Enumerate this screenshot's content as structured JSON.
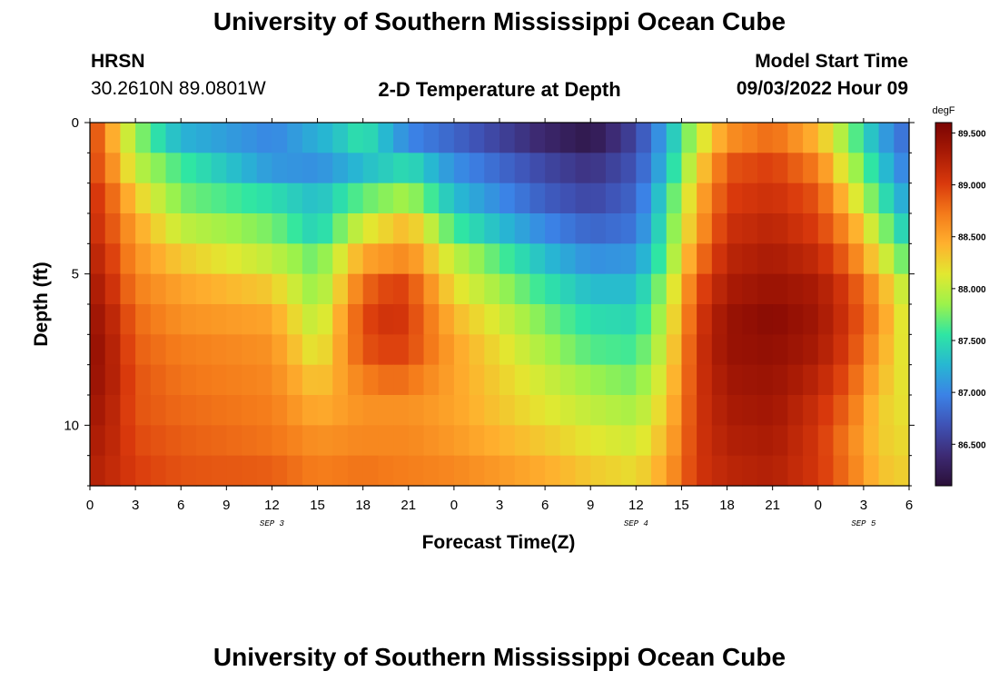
{
  "header": {
    "title": "University of Southern Mississippi Ocean Cube",
    "station": "HRSN",
    "coords": "30.2610N  89.0801W",
    "subtitle": "2-D Temperature at Depth",
    "model_start_label": "Model Start Time",
    "model_start_value": "09/03/2022 Hour 09"
  },
  "footer": {
    "title_repeat": "University of Southern Mississippi Ocean Cube"
  },
  "chart_data": {
    "type": "heatmap",
    "title": "2-D Temperature at Depth",
    "xlabel": "Forecast Time(Z)",
    "ylabel": "Depth (ft)",
    "x_hours_from_start": [
      0,
      3,
      6,
      9,
      12,
      15,
      18,
      21,
      24,
      27,
      30,
      33,
      36,
      39,
      42,
      45,
      48,
      51,
      54
    ],
    "x_tick_labels": [
      "0",
      "3",
      "6",
      "9",
      "12",
      "15",
      "18",
      "21",
      "0",
      "3",
      "6",
      "9",
      "12",
      "15",
      "18",
      "21",
      "0",
      "3",
      "6"
    ],
    "date_labels": [
      {
        "label": "SEP 3",
        "at_hour": 12
      },
      {
        "label": "SEP 4",
        "at_hour": 36
      },
      {
        "label": "SEP 5",
        "at_hour": 51
      }
    ],
    "y_ticks": [
      0,
      5,
      10
    ],
    "y_tick_labels": [
      "0",
      "5",
      "10"
    ],
    "xlim": [
      0,
      54
    ],
    "ylim": [
      0,
      12
    ],
    "colorbar": {
      "unit": "degF",
      "min": 86.1,
      "max": 89.6,
      "tick_values": [
        86.5,
        87.0,
        87.5,
        88.0,
        88.5,
        89.0,
        89.5
      ],
      "tick_labels": [
        "86.500",
        "87.000",
        "87.500",
        "88.000",
        "88.500",
        "89.000",
        "89.500"
      ]
    },
    "depth_profiles": [
      {
        "depth_ft": 0.5,
        "t": [
          [
            0,
            89.0
          ],
          [
            1,
            88.7
          ],
          [
            2,
            88.2
          ],
          [
            4,
            87.6
          ],
          [
            6,
            87.25
          ],
          [
            12,
            87.0
          ],
          [
            16,
            87.3
          ],
          [
            18,
            87.55
          ],
          [
            21,
            87.0
          ],
          [
            24,
            86.8
          ],
          [
            30,
            86.35
          ],
          [
            33,
            86.2
          ],
          [
            36,
            86.6
          ],
          [
            38,
            87.2
          ],
          [
            40,
            88.0
          ],
          [
            42,
            88.6
          ],
          [
            45,
            88.8
          ],
          [
            48,
            88.4
          ],
          [
            50,
            87.8
          ],
          [
            52,
            87.2
          ],
          [
            54,
            86.8
          ]
        ]
      },
      {
        "depth_ft": 1.5,
        "t": [
          [
            0,
            89.0
          ],
          [
            1,
            88.8
          ],
          [
            3,
            88.0
          ],
          [
            6,
            87.6
          ],
          [
            12,
            87.1
          ],
          [
            15,
            87.05
          ],
          [
            18,
            87.3
          ],
          [
            21,
            87.5
          ],
          [
            24,
            87.05
          ],
          [
            30,
            86.6
          ],
          [
            33,
            86.45
          ],
          [
            36,
            86.7
          ],
          [
            38,
            87.3
          ],
          [
            40,
            88.2
          ],
          [
            42,
            88.9
          ],
          [
            45,
            89.0
          ],
          [
            48,
            88.7
          ],
          [
            50,
            88.0
          ],
          [
            52,
            87.4
          ],
          [
            54,
            86.9
          ]
        ]
      },
      {
        "depth_ft": 2.5,
        "t": [
          [
            0,
            89.1
          ],
          [
            1,
            88.95
          ],
          [
            3,
            88.3
          ],
          [
            6,
            87.75
          ],
          [
            12,
            87.5
          ],
          [
            15,
            87.3
          ],
          [
            18,
            87.7
          ],
          [
            21,
            87.9
          ],
          [
            24,
            87.3
          ],
          [
            30,
            86.75
          ],
          [
            33,
            86.6
          ],
          [
            36,
            86.8
          ],
          [
            38,
            87.5
          ],
          [
            40,
            88.4
          ],
          [
            42,
            89.0
          ],
          [
            45,
            89.1
          ],
          [
            48,
            88.9
          ],
          [
            50,
            88.3
          ],
          [
            52,
            87.6
          ],
          [
            54,
            87.1
          ]
        ]
      },
      {
        "depth_ft": 3.5,
        "t": [
          [
            0,
            89.15
          ],
          [
            1,
            89.0
          ],
          [
            3,
            88.5
          ],
          [
            6,
            88.0
          ],
          [
            12,
            87.75
          ],
          [
            15,
            87.4
          ],
          [
            18,
            88.1
          ],
          [
            21,
            88.4
          ],
          [
            24,
            87.6
          ],
          [
            30,
            87.0
          ],
          [
            33,
            86.8
          ],
          [
            36,
            86.9
          ],
          [
            38,
            87.6
          ],
          [
            40,
            88.5
          ],
          [
            42,
            89.1
          ],
          [
            45,
            89.2
          ],
          [
            48,
            89.0
          ],
          [
            50,
            88.6
          ],
          [
            52,
            87.9
          ],
          [
            54,
            87.3
          ]
        ]
      },
      {
        "depth_ft": 4.5,
        "t": [
          [
            0,
            89.25
          ],
          [
            1,
            89.1
          ],
          [
            3,
            88.6
          ],
          [
            6,
            88.3
          ],
          [
            12,
            88.0
          ],
          [
            15,
            87.7
          ],
          [
            18,
            88.5
          ],
          [
            21,
            88.65
          ],
          [
            24,
            88.0
          ],
          [
            30,
            87.3
          ],
          [
            33,
            87.05
          ],
          [
            36,
            87.1
          ],
          [
            38,
            87.7
          ],
          [
            40,
            88.7
          ],
          [
            42,
            89.2
          ],
          [
            45,
            89.3
          ],
          [
            48,
            89.15
          ],
          [
            50,
            88.8
          ],
          [
            52,
            88.2
          ],
          [
            54,
            87.6
          ]
        ]
      },
      {
        "depth_ft": 5.5,
        "t": [
          [
            0,
            89.35
          ],
          [
            1,
            89.2
          ],
          [
            3,
            88.7
          ],
          [
            6,
            88.5
          ],
          [
            12,
            88.3
          ],
          [
            15,
            87.8
          ],
          [
            18,
            88.8
          ],
          [
            20,
            89.0
          ],
          [
            21,
            88.95
          ],
          [
            24,
            88.2
          ],
          [
            30,
            87.55
          ],
          [
            33,
            87.3
          ],
          [
            36,
            87.3
          ],
          [
            38,
            87.9
          ],
          [
            40,
            88.9
          ],
          [
            42,
            89.3
          ],
          [
            45,
            89.4
          ],
          [
            48,
            89.3
          ],
          [
            50,
            89.0
          ],
          [
            52,
            88.5
          ],
          [
            54,
            87.9
          ]
        ]
      },
      {
        "depth_ft": 6.5,
        "t": [
          [
            0,
            89.4
          ],
          [
            1,
            89.3
          ],
          [
            3,
            88.8
          ],
          [
            6,
            88.6
          ],
          [
            12,
            88.5
          ],
          [
            15,
            87.95
          ],
          [
            18,
            88.95
          ],
          [
            20,
            89.1
          ],
          [
            21,
            89.0
          ],
          [
            24,
            88.4
          ],
          [
            30,
            87.75
          ],
          [
            33,
            87.5
          ],
          [
            36,
            87.45
          ],
          [
            38,
            88.0
          ],
          [
            40,
            89.0
          ],
          [
            42,
            89.4
          ],
          [
            45,
            89.5
          ],
          [
            48,
            89.35
          ],
          [
            50,
            89.05
          ],
          [
            52,
            88.6
          ],
          [
            54,
            88.0
          ]
        ]
      },
      {
        "depth_ft": 7.5,
        "t": [
          [
            0,
            89.45
          ],
          [
            1,
            89.35
          ],
          [
            3,
            88.85
          ],
          [
            6,
            88.7
          ],
          [
            12,
            88.6
          ],
          [
            15,
            88.1
          ],
          [
            18,
            88.9
          ],
          [
            20,
            89.0
          ],
          [
            21,
            88.95
          ],
          [
            24,
            88.5
          ],
          [
            30,
            87.9
          ],
          [
            33,
            87.65
          ],
          [
            36,
            87.6
          ],
          [
            38,
            88.1
          ],
          [
            40,
            89.05
          ],
          [
            42,
            89.4
          ],
          [
            45,
            89.45
          ],
          [
            48,
            89.3
          ],
          [
            50,
            89.0
          ],
          [
            52,
            88.5
          ],
          [
            54,
            88.05
          ]
        ]
      },
      {
        "depth_ft": 8.5,
        "t": [
          [
            0,
            89.4
          ],
          [
            1,
            89.35
          ],
          [
            3,
            88.9
          ],
          [
            6,
            88.75
          ],
          [
            12,
            88.65
          ],
          [
            15,
            88.3
          ],
          [
            18,
            88.7
          ],
          [
            20,
            88.8
          ],
          [
            21,
            88.75
          ],
          [
            24,
            88.5
          ],
          [
            30,
            88.05
          ],
          [
            33,
            87.85
          ],
          [
            36,
            87.75
          ],
          [
            38,
            88.2
          ],
          [
            40,
            89.05
          ],
          [
            42,
            89.35
          ],
          [
            45,
            89.4
          ],
          [
            48,
            89.2
          ],
          [
            50,
            88.9
          ],
          [
            52,
            88.4
          ],
          [
            54,
            88.1
          ]
        ]
      },
      {
        "depth_ft": 9.5,
        "t": [
          [
            0,
            89.35
          ],
          [
            1,
            89.3
          ],
          [
            3,
            88.9
          ],
          [
            6,
            88.8
          ],
          [
            12,
            88.7
          ],
          [
            15,
            88.45
          ],
          [
            18,
            88.6
          ],
          [
            21,
            88.6
          ],
          [
            24,
            88.5
          ],
          [
            30,
            88.15
          ],
          [
            33,
            88.0
          ],
          [
            36,
            87.9
          ],
          [
            38,
            88.3
          ],
          [
            40,
            89.05
          ],
          [
            42,
            89.3
          ],
          [
            45,
            89.35
          ],
          [
            48,
            89.1
          ],
          [
            50,
            88.8
          ],
          [
            52,
            88.3
          ],
          [
            54,
            88.15
          ]
        ]
      },
      {
        "depth_ft": 10.5,
        "t": [
          [
            0,
            89.3
          ],
          [
            1,
            89.25
          ],
          [
            3,
            88.95
          ],
          [
            6,
            88.85
          ],
          [
            12,
            88.75
          ],
          [
            15,
            88.6
          ],
          [
            18,
            88.65
          ],
          [
            21,
            88.65
          ],
          [
            24,
            88.55
          ],
          [
            30,
            88.3
          ],
          [
            33,
            88.15
          ],
          [
            36,
            88.05
          ],
          [
            38,
            88.4
          ],
          [
            40,
            89.05
          ],
          [
            42,
            89.25
          ],
          [
            45,
            89.3
          ],
          [
            48,
            89.05
          ],
          [
            50,
            88.7
          ],
          [
            52,
            88.3
          ],
          [
            54,
            88.2
          ]
        ]
      },
      {
        "depth_ft": 11.5,
        "t": [
          [
            0,
            89.25
          ],
          [
            1,
            89.2
          ],
          [
            3,
            89.0
          ],
          [
            6,
            88.9
          ],
          [
            12,
            88.85
          ],
          [
            15,
            88.7
          ],
          [
            18,
            88.75
          ],
          [
            21,
            88.7
          ],
          [
            24,
            88.65
          ],
          [
            30,
            88.45
          ],
          [
            33,
            88.3
          ],
          [
            36,
            88.2
          ],
          [
            38,
            88.5
          ],
          [
            40,
            89.05
          ],
          [
            42,
            89.2
          ],
          [
            45,
            89.25
          ],
          [
            48,
            89.05
          ],
          [
            50,
            88.75
          ],
          [
            52,
            88.35
          ],
          [
            54,
            88.25
          ]
        ]
      }
    ],
    "colors": {
      "scale": [
        "#2a0f38",
        "#3d2a73",
        "#3f52b5",
        "#3b82e6",
        "#27b7d2",
        "#2fe6a3",
        "#9cf24b",
        "#e2e830",
        "#ffb02e",
        "#f47a1a",
        "#d9390c",
        "#a81a05",
        "#7a0403"
      ]
    }
  }
}
